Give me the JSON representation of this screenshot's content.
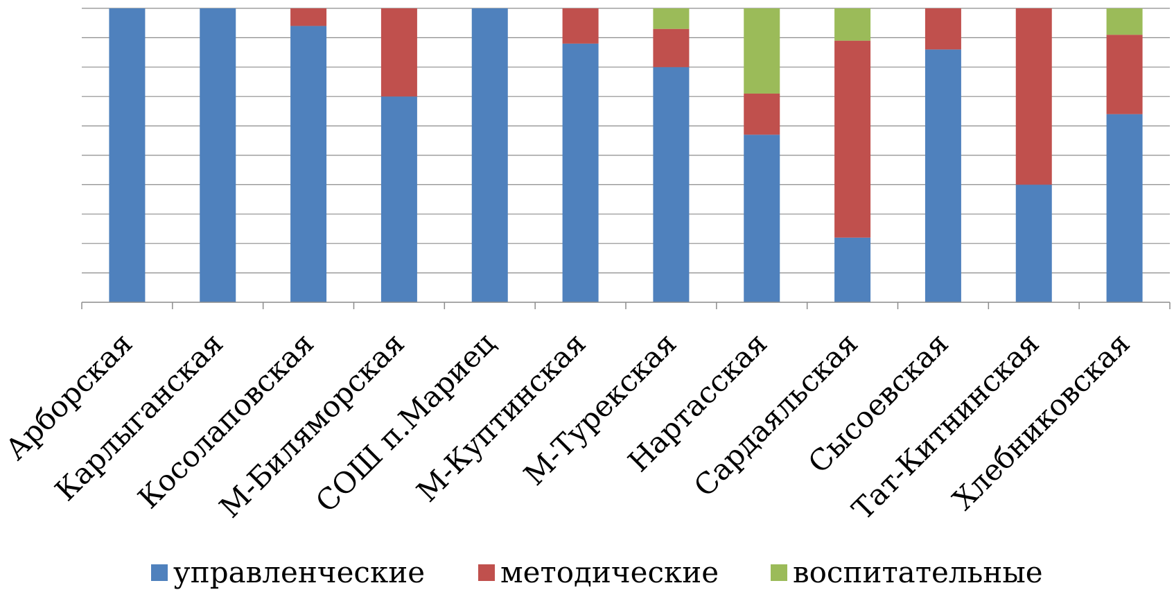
{
  "chart_data": {
    "type": "bar",
    "stacked": true,
    "percent_stacked": true,
    "categories": [
      "Арборская",
      "Карлыганская",
      "Косолаповская",
      "М-Биляморская",
      "СОШ п.Мариец",
      "М-Куптинская",
      "М-Турекская",
      "Нартасская",
      "Сардаяльская",
      "Сысоевская",
      "Тат-Китнинская",
      "Хлебниковская"
    ],
    "series": [
      {
        "name": "управленческие",
        "color": "#4F81BD",
        "values": [
          100,
          100,
          94,
          70,
          100,
          88,
          80,
          57,
          22,
          86,
          40,
          64
        ]
      },
      {
        "name": "методические",
        "color": "#C0504D",
        "values": [
          0,
          0,
          6,
          30,
          0,
          12,
          13,
          14,
          67,
          14,
          60,
          27
        ]
      },
      {
        "name": "воспитательные",
        "color": "#9BBB59",
        "values": [
          0,
          0,
          0,
          0,
          0,
          0,
          7,
          29,
          11,
          0,
          0,
          9
        ]
      }
    ],
    "ylim": [
      0,
      100
    ],
    "grid": true,
    "legend_position": "bottom",
    "xlabel": "",
    "ylabel": ""
  }
}
